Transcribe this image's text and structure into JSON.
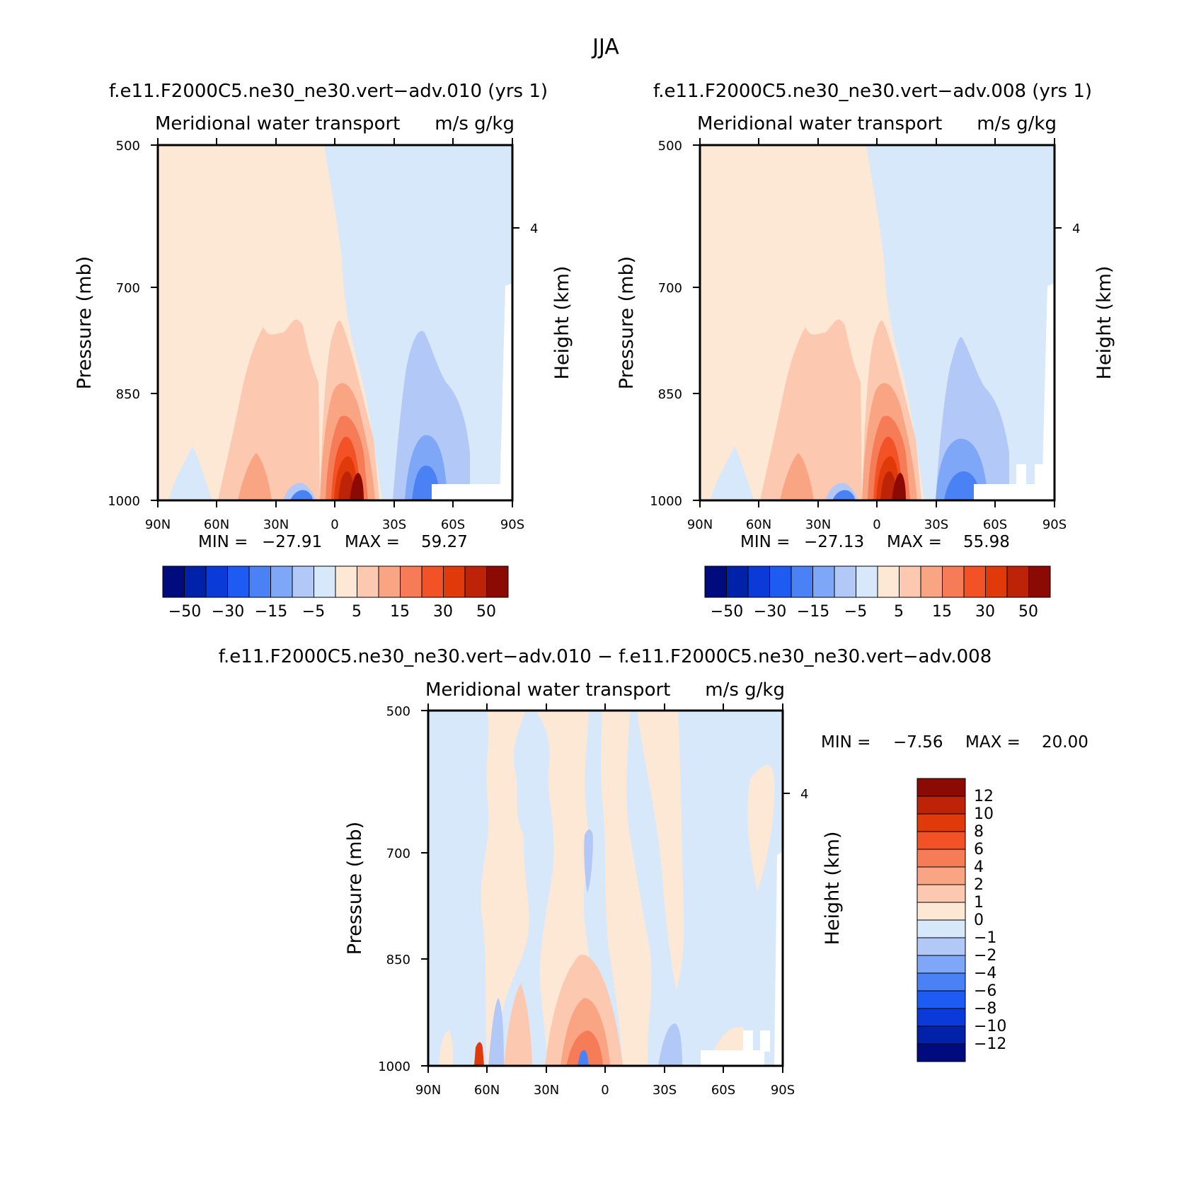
{
  "figure": {
    "title": "JJA"
  },
  "colors": {
    "scale17": [
      "#000b7d",
      "#0022a8",
      "#0a3ad8",
      "#1d5bf3",
      "#4a82f5",
      "#7ea7f7",
      "#b2c9f8",
      "#d8e8fb",
      "#fde8d6",
      "#fcc8af",
      "#f9a483",
      "#f57c56",
      "#f25225",
      "#e03a0a",
      "#bd2407",
      "#8c0a04"
    ]
  },
  "panels": [
    {
      "case_title": "f.e11.F2000C5.ne30_ne30.vert−adv.010 (yrs 1)",
      "left_title": "Meridional water transport",
      "right_title": "m/s g/kg",
      "ylabel": "Pressure (mb)",
      "y2label": "Height (km)",
      "y_ticks": [
        "500",
        "700",
        "850",
        "1000"
      ],
      "y2_ticks": [
        "4"
      ],
      "x_ticks": [
        "90N",
        "60N",
        "30N",
        "0",
        "30S",
        "60S",
        "90S"
      ],
      "min_label": "MIN =",
      "min_value": "−27.91",
      "max_label": "MAX =",
      "max_value": "59.27",
      "colorbar_labels": [
        "−50",
        "−30",
        "−15",
        "−5",
        "5",
        "15",
        "30",
        "50"
      ]
    },
    {
      "case_title": "f.e11.F2000C5.ne30_ne30.vert−adv.008 (yrs 1)",
      "left_title": "Meridional water transport",
      "right_title": "m/s g/kg",
      "ylabel": "Pressure (mb)",
      "y2label": "Height (km)",
      "y_ticks": [
        "500",
        "700",
        "850",
        "1000"
      ],
      "y2_ticks": [
        "4"
      ],
      "x_ticks": [
        "90N",
        "60N",
        "30N",
        "0",
        "30S",
        "60S",
        "90S"
      ],
      "min_label": "MIN =",
      "min_value": "−27.13",
      "max_label": "MAX =",
      "max_value": "55.98",
      "colorbar_labels": [
        "−50",
        "−30",
        "−15",
        "−5",
        "5",
        "15",
        "30",
        "50"
      ]
    },
    {
      "case_title": "f.e11.F2000C5.ne30_ne30.vert−adv.010 − f.e11.F2000C5.ne30_ne30.vert−adv.008",
      "left_title": "Meridional water transport",
      "right_title": "m/s g/kg",
      "ylabel": "Pressure (mb)",
      "y2label": "Height (km)",
      "y_ticks": [
        "500",
        "700",
        "850",
        "1000"
      ],
      "y2_ticks": [
        "4"
      ],
      "x_ticks": [
        "90N",
        "60N",
        "30N",
        "0",
        "30S",
        "60S",
        "90S"
      ],
      "min_label": "MIN =",
      "min_value": "−7.56",
      "max_label": "MAX =",
      "max_value": "20.00",
      "colorbar_labels": [
        "12",
        "10",
        "8",
        "6",
        "4",
        "2",
        "1",
        "0",
        "−1",
        "−2",
        "−4",
        "−6",
        "−8",
        "−10",
        "−12"
      ]
    }
  ],
  "chart_data": [
    {
      "type": "heatmap",
      "title": "f.e11.F2000C5.ne30_ne30.vert−adv.010 (yrs 1)",
      "variable": "Meridional water transport",
      "units": "m/s g/kg",
      "xlabel": "",
      "ylabel": "Pressure (mb)",
      "y2label": "Height (km)",
      "x_ticks": [
        "90N",
        "60N",
        "30N",
        "0",
        "30S",
        "60S",
        "90S"
      ],
      "y_ticks": [
        500,
        700,
        850,
        1000
      ],
      "ylim": [
        1000,
        500
      ],
      "contour_levels": [
        -50,
        -40,
        -30,
        -20,
        -15,
        -10,
        -5,
        0,
        5,
        10,
        15,
        20,
        30,
        40,
        50
      ],
      "min": -27.91,
      "max": 59.27
    },
    {
      "type": "heatmap",
      "title": "f.e11.F2000C5.ne30_ne30.vert−adv.008 (yrs 1)",
      "variable": "Meridional water transport",
      "units": "m/s g/kg",
      "xlabel": "",
      "ylabel": "Pressure (mb)",
      "y2label": "Height (km)",
      "x_ticks": [
        "90N",
        "60N",
        "30N",
        "0",
        "30S",
        "60S",
        "90S"
      ],
      "y_ticks": [
        500,
        700,
        850,
        1000
      ],
      "ylim": [
        1000,
        500
      ],
      "contour_levels": [
        -50,
        -40,
        -30,
        -20,
        -15,
        -10,
        -5,
        0,
        5,
        10,
        15,
        20,
        30,
        40,
        50
      ],
      "min": -27.13,
      "max": 55.98
    },
    {
      "type": "heatmap",
      "title": "f.e11.F2000C5.ne30_ne30.vert−adv.010 − f.e11.F2000C5.ne30_ne30.vert−adv.008",
      "variable": "Meridional water transport",
      "units": "m/s g/kg",
      "xlabel": "",
      "ylabel": "Pressure (mb)",
      "y2label": "Height (km)",
      "x_ticks": [
        "90N",
        "60N",
        "30N",
        "0",
        "30S",
        "60S",
        "90S"
      ],
      "y_ticks": [
        500,
        700,
        850,
        1000
      ],
      "ylim": [
        1000,
        500
      ],
      "contour_levels": [
        -12,
        -10,
        -8,
        -6,
        -4,
        -2,
        -1,
        0,
        1,
        2,
        4,
        6,
        8,
        10,
        12
      ],
      "min": -7.56,
      "max": 20.0
    }
  ]
}
